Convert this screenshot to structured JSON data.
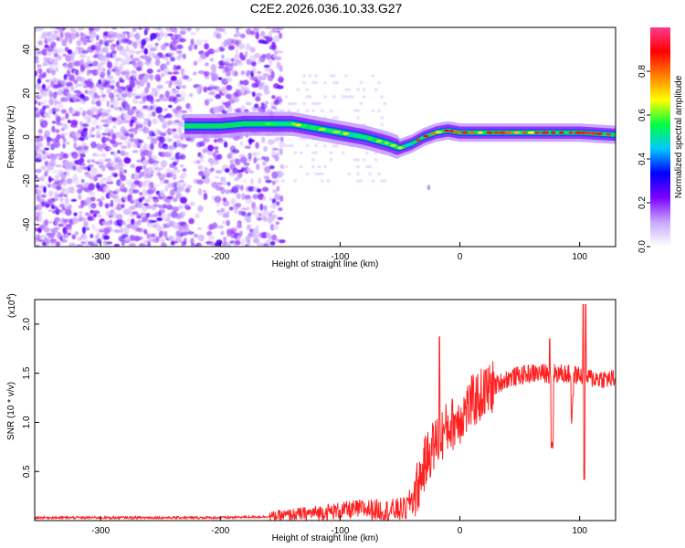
{
  "figure": {
    "title": "C2E2.2026.036.10.33.G27"
  },
  "chart_data": [
    {
      "type": "heatmap",
      "name": "spectrogram",
      "xlabel": "Height of straight line (km)",
      "ylabel": "Frequency (Hz)",
      "xlim": [
        -355,
        130
      ],
      "ylim": [
        -50,
        50
      ],
      "x_ticks": [
        -300,
        -200,
        -100,
        0,
        100
      ],
      "y_ticks": [
        -40,
        -20,
        0,
        20,
        40
      ],
      "colorbar": {
        "label": "Normalized spectral amplitude",
        "range": [
          0,
          1
        ],
        "ticks": [
          0.0,
          0.2,
          0.4,
          0.6,
          0.8
        ],
        "colors": [
          "#ffffff",
          "#c9a6ff",
          "#7a00ff",
          "#0000ff",
          "#00c8ff",
          "#00ff40",
          "#ffff00",
          "#ff8000",
          "#ff0000",
          "#ff3c96"
        ]
      },
      "ridge": {
        "x": [
          -230,
          -220,
          -200,
          -180,
          -160,
          -140,
          -120,
          -100,
          -80,
          -60,
          -50,
          -40,
          -30,
          -20,
          -10,
          0,
          20,
          40,
          60,
          80,
          100,
          130
        ],
        "y": [
          5,
          5,
          5,
          6,
          6,
          6,
          4,
          2,
          0,
          -3,
          -5,
          -3,
          0,
          2,
          3,
          2,
          2,
          2,
          2,
          2,
          2,
          1
        ]
      }
    },
    {
      "type": "line",
      "name": "snr",
      "xlabel": "Height of straight line (km)",
      "ylabel": "SNR (10 * v/v)",
      "y_multiplier": "(x10",
      "y_multiplier_exp": "4",
      "xlim": [
        -355,
        130
      ],
      "ylim": [
        0,
        2.25
      ],
      "x_ticks": [
        -300,
        -200,
        -100,
        0,
        100
      ],
      "y_ticks": [
        0.5,
        1.0,
        1.5,
        2.0
      ],
      "series_color": "#ff2020",
      "envelope": {
        "x": [
          -355,
          -200,
          -160,
          -140,
          -100,
          -80,
          -60,
          -45,
          -35,
          -30,
          -25,
          -20,
          -10,
          0,
          10,
          20,
          30,
          40,
          60,
          80,
          100,
          110,
          130
        ],
        "y": [
          0.03,
          0.03,
          0.04,
          0.06,
          0.1,
          0.12,
          0.1,
          0.12,
          0.35,
          0.55,
          0.7,
          0.8,
          0.95,
          1.05,
          1.2,
          1.3,
          1.38,
          1.45,
          1.5,
          1.5,
          1.48,
          1.45,
          1.44
        ]
      },
      "spikes": [
        {
          "x": -17,
          "y": 1.87
        },
        {
          "x": 75,
          "y": 1.85
        },
        {
          "x": 103,
          "y": 2.2
        },
        {
          "x": 105,
          "y": 2.2
        }
      ]
    }
  ]
}
